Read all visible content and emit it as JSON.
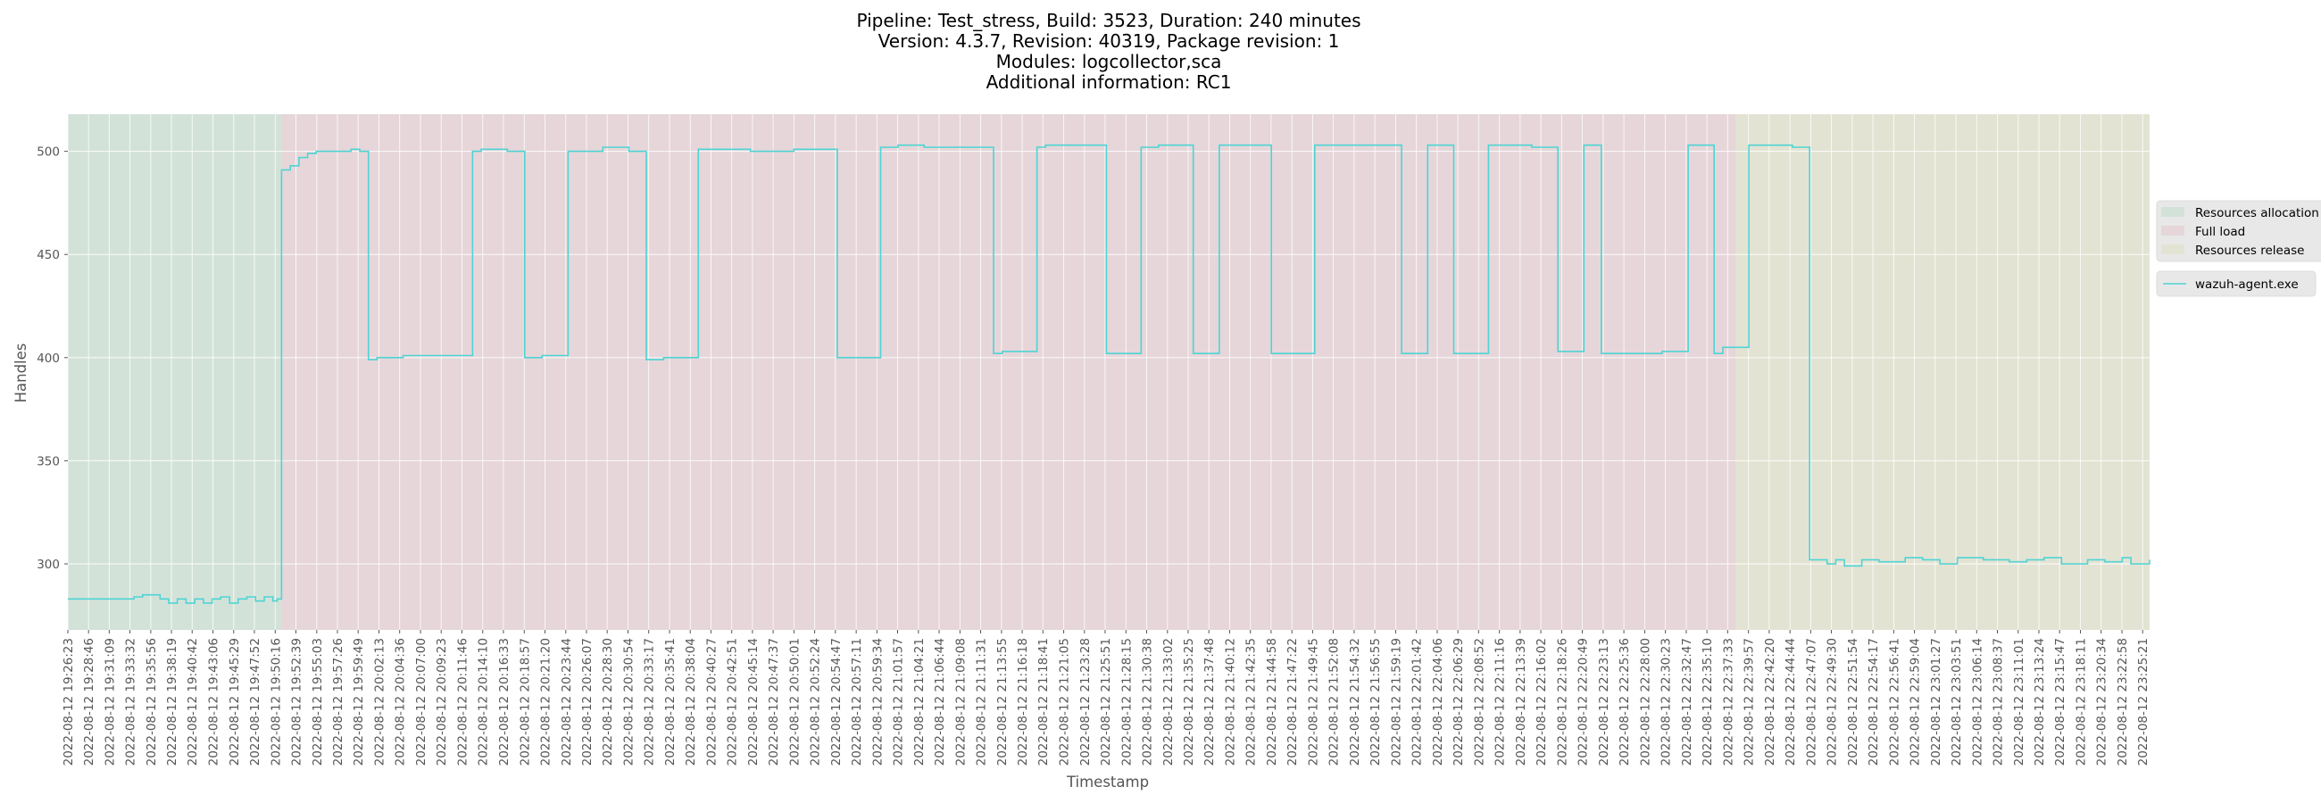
{
  "chart_data": {
    "type": "line",
    "title_lines": [
      "Pipeline: Test_stress, Build: 3523, Duration: 240 minutes",
      "Version: 4.3.7, Revision: 40319, Package revision: 1",
      "Modules: logcollector,sca",
      "Additional information: RC1"
    ],
    "xlabel": "Timestamp",
    "ylabel": "Handles",
    "ylim": [
      268,
      518
    ],
    "yticks": [
      300,
      350,
      400,
      450,
      500
    ],
    "grid": true,
    "legend_placement": "right",
    "phases": [
      {
        "name": "Resources allocation",
        "start": "2022-08-12 19:26:23",
        "end": "2022-08-12 19:51:00",
        "color": "#d3e2d8"
      },
      {
        "name": "Full load",
        "start": "2022-08-12 19:51:00",
        "end": "2022-08-12 22:38:30",
        "color": "#e6d6d9"
      },
      {
        "name": "Resources release",
        "start": "2022-08-12 22:38:30",
        "end": "2022-08-12 23:26:09",
        "color": "#e3e3d3"
      }
    ],
    "xticks": [
      "2022-08-12 19:26:23",
      "2022-08-12 19:28:46",
      "2022-08-12 19:31:09",
      "2022-08-12 19:33:32",
      "2022-08-12 19:35:56",
      "2022-08-12 19:38:19",
      "2022-08-12 19:40:42",
      "2022-08-12 19:43:06",
      "2022-08-12 19:45:29",
      "2022-08-12 19:47:52",
      "2022-08-12 19:50:16",
      "2022-08-12 19:52:39",
      "2022-08-12 19:55:03",
      "2022-08-12 19:57:26",
      "2022-08-12 19:59:49",
      "2022-08-12 20:02:13",
      "2022-08-12 20:04:36",
      "2022-08-12 20:07:00",
      "2022-08-12 20:09:23",
      "2022-08-12 20:11:46",
      "2022-08-12 20:14:10",
      "2022-08-12 20:16:33",
      "2022-08-12 20:18:57",
      "2022-08-12 20:21:20",
      "2022-08-12 20:23:44",
      "2022-08-12 20:26:07",
      "2022-08-12 20:28:30",
      "2022-08-12 20:30:54",
      "2022-08-12 20:33:17",
      "2022-08-12 20:35:41",
      "2022-08-12 20:38:04",
      "2022-08-12 20:40:27",
      "2022-08-12 20:42:51",
      "2022-08-12 20:45:14",
      "2022-08-12 20:47:37",
      "2022-08-12 20:50:01",
      "2022-08-12 20:52:24",
      "2022-08-12 20:54:47",
      "2022-08-12 20:57:11",
      "2022-08-12 20:59:34",
      "2022-08-12 21:01:57",
      "2022-08-12 21:04:21",
      "2022-08-12 21:06:44",
      "2022-08-12 21:09:08",
      "2022-08-12 21:11:31",
      "2022-08-12 21:13:55",
      "2022-08-12 21:16:18",
      "2022-08-12 21:18:41",
      "2022-08-12 21:21:05",
      "2022-08-12 21:23:28",
      "2022-08-12 21:25:51",
      "2022-08-12 21:28:15",
      "2022-08-12 21:30:38",
      "2022-08-12 21:33:02",
      "2022-08-12 21:35:25",
      "2022-08-12 21:37:48",
      "2022-08-12 21:40:12",
      "2022-08-12 21:42:35",
      "2022-08-12 21:44:58",
      "2022-08-12 21:47:22",
      "2022-08-12 21:49:45",
      "2022-08-12 21:52:08",
      "2022-08-12 21:54:32",
      "2022-08-12 21:56:55",
      "2022-08-12 21:59:19",
      "2022-08-12 22:01:42",
      "2022-08-12 22:04:06",
      "2022-08-12 22:06:29",
      "2022-08-12 22:08:52",
      "2022-08-12 22:11:16",
      "2022-08-12 22:13:39",
      "2022-08-12 22:16:02",
      "2022-08-12 22:18:26",
      "2022-08-12 22:20:49",
      "2022-08-12 22:23:13",
      "2022-08-12 22:25:36",
      "2022-08-12 22:28:00",
      "2022-08-12 22:30:23",
      "2022-08-12 22:32:47",
      "2022-08-12 22:35:10",
      "2022-08-12 22:37:33",
      "2022-08-12 22:39:57",
      "2022-08-12 22:42:20",
      "2022-08-12 22:44:44",
      "2022-08-12 22:47:07",
      "2022-08-12 22:49:30",
      "2022-08-12 22:51:54",
      "2022-08-12 22:54:17",
      "2022-08-12 22:56:41",
      "2022-08-12 22:59:04",
      "2022-08-12 23:01:27",
      "2022-08-12 23:03:51",
      "2022-08-12 23:06:14",
      "2022-08-12 23:08:37",
      "2022-08-12 23:11:01",
      "2022-08-12 23:13:24",
      "2022-08-12 23:15:47",
      "2022-08-12 23:18:11",
      "2022-08-12 23:20:34",
      "2022-08-12 23:22:58",
      "2022-08-12 23:25:21"
    ],
    "series": [
      {
        "name": "wazuh-agent.exe",
        "color": "#4ed4d4",
        "step": true,
        "x": [
          "2022-08-12 19:26:23",
          "2022-08-12 19:34:00",
          "2022-08-12 19:35:00",
          "2022-08-12 19:37:00",
          "2022-08-12 19:38:00",
          "2022-08-12 19:39:00",
          "2022-08-12 19:40:00",
          "2022-08-12 19:41:00",
          "2022-08-12 19:42:00",
          "2022-08-12 19:43:00",
          "2022-08-12 19:44:00",
          "2022-08-12 19:45:00",
          "2022-08-12 19:46:00",
          "2022-08-12 19:47:00",
          "2022-08-12 19:48:00",
          "2022-08-12 19:49:00",
          "2022-08-12 19:50:00",
          "2022-08-12 19:50:30",
          "2022-08-12 19:51:00",
          "2022-08-12 19:52:00",
          "2022-08-12 19:53:00",
          "2022-08-12 19:54:00",
          "2022-08-12 19:55:00",
          "2022-08-12 19:57:00",
          "2022-08-12 19:59:00",
          "2022-08-12 20:00:00",
          "2022-08-12 20:01:00",
          "2022-08-12 20:02:00",
          "2022-08-12 20:05:00",
          "2022-08-12 20:13:00",
          "2022-08-12 20:14:00",
          "2022-08-12 20:17:00",
          "2022-08-12 20:19:00",
          "2022-08-12 20:21:00",
          "2022-08-12 20:24:00",
          "2022-08-12 20:28:00",
          "2022-08-12 20:31:00",
          "2022-08-12 20:33:00",
          "2022-08-12 20:35:00",
          "2022-08-12 20:39:00",
          "2022-08-12 20:45:00",
          "2022-08-12 20:50:00",
          "2022-08-12 20:55:00",
          "2022-08-12 21:00:00",
          "2022-08-12 21:02:00",
          "2022-08-12 21:05:00",
          "2022-08-12 21:13:00",
          "2022-08-12 21:14:00",
          "2022-08-12 21:18:00",
          "2022-08-12 21:19:00",
          "2022-08-12 21:26:00",
          "2022-08-12 21:30:00",
          "2022-08-12 21:32:00",
          "2022-08-12 21:36:00",
          "2022-08-12 21:39:00",
          "2022-08-12 21:45:00",
          "2022-08-12 21:50:00",
          "2022-08-12 21:54:00",
          "2022-08-12 22:00:00",
          "2022-08-12 22:03:00",
          "2022-08-12 22:06:00",
          "2022-08-12 22:10:00",
          "2022-08-12 22:15:00",
          "2022-08-12 22:18:00",
          "2022-08-12 22:21:00",
          "2022-08-12 22:23:00",
          "2022-08-12 22:30:00",
          "2022-08-12 22:33:00",
          "2022-08-12 22:36:00",
          "2022-08-12 22:37:00",
          "2022-08-12 22:40:00",
          "2022-08-12 22:45:00",
          "2022-08-12 22:47:00",
          "2022-08-12 22:49:00",
          "2022-08-12 22:50:00",
          "2022-08-12 22:51:00",
          "2022-08-12 22:53:00",
          "2022-08-12 22:55:00",
          "2022-08-12 22:58:00",
          "2022-08-12 23:00:00",
          "2022-08-12 23:02:00",
          "2022-08-12 23:04:00",
          "2022-08-12 23:07:00",
          "2022-08-12 23:10:00",
          "2022-08-12 23:12:00",
          "2022-08-12 23:14:00",
          "2022-08-12 23:16:00",
          "2022-08-12 23:19:00",
          "2022-08-12 23:21:00",
          "2022-08-12 23:23:00",
          "2022-08-12 23:24:00",
          "2022-08-12 23:26:09"
        ],
        "values": [
          283,
          284,
          285,
          283,
          281,
          283,
          281,
          283,
          281,
          283,
          284,
          281,
          283,
          284,
          282,
          284,
          282,
          283,
          491,
          493,
          497,
          499,
          500,
          500,
          501,
          500,
          399,
          400,
          401,
          500,
          501,
          500,
          400,
          401,
          500,
          502,
          500,
          399,
          400,
          501,
          500,
          501,
          400,
          502,
          503,
          502,
          402,
          403,
          502,
          503,
          402,
          502,
          503,
          402,
          503,
          402,
          503,
          503,
          402,
          503,
          402,
          503,
          502,
          403,
          503,
          402,
          403,
          503,
          402,
          405,
          503,
          502,
          302,
          300,
          302,
          299,
          302,
          301,
          303,
          302,
          300,
          303,
          302,
          301,
          302,
          303,
          300,
          302,
          301,
          303,
          300,
          302
        ]
      }
    ],
    "legend": {
      "phase_entries": [
        "Resources allocation",
        "Full load",
        "Resources release"
      ],
      "series_entries": [
        "wazuh-agent.exe"
      ]
    }
  }
}
